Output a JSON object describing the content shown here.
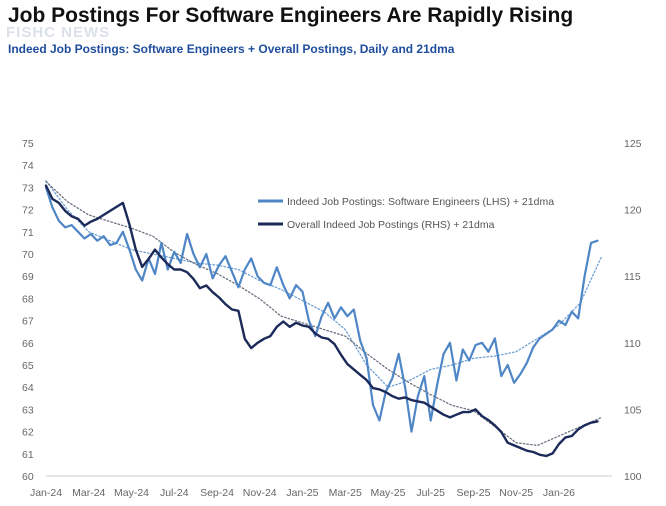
{
  "header": {
    "title": "Job Postings For Software Engineers Are Rapidly Rising",
    "subtitle": "Indeed Job Postings: Software Engineers + Overall Postings, Daily and 21dma",
    "watermark": "FISHC NEWS"
  },
  "colors": {
    "software": "#4f86c6",
    "software_ma": "#6f9fd6",
    "overall": "#1b2a59",
    "overall_ma": "#6b7280"
  },
  "chart_data": {
    "type": "line",
    "title": "Job Postings For Software Engineers Are Rapidly Rising",
    "subtitle": "Indeed Job Postings: Software Engineers + Overall Postings, Daily and 21dma",
    "x_tick_labels": [
      "Jan-24",
      "Mar-24",
      "May-24",
      "Jul-24",
      "Sep-24",
      "Nov-24",
      "Jan-25",
      "Mar-25",
      "May-25",
      "Jul-25",
      "Sep-25",
      "Nov-25",
      "Jan-26"
    ],
    "x_range": [
      0,
      26.2
    ],
    "left_axis": {
      "min": 60,
      "max": 75,
      "ticks": [
        "60",
        "61",
        "62",
        "63",
        "64",
        "65",
        "66",
        "67",
        "68",
        "69",
        "70",
        "71",
        "72",
        "73",
        "74",
        "75"
      ]
    },
    "right_axis": {
      "min": 100,
      "max": 125,
      "ticks": [
        "100",
        "105",
        "110",
        "115",
        "120",
        "125"
      ]
    },
    "legend": [
      "Indeed Job Postings: Software Engineers (LHS) + 21dma",
      "Overall Indeed Job Postings (RHS) + 21dma"
    ],
    "series": [
      {
        "name": "Indeed Job Postings: Software Engineers (LHS)",
        "axis": "left",
        "style": "solid",
        "x": [
          0,
          0.3,
          0.6,
          0.9,
          1.2,
          1.5,
          1.8,
          2.1,
          2.4,
          2.7,
          3.0,
          3.3,
          3.6,
          3.9,
          4.2,
          4.5,
          4.8,
          5.1,
          5.4,
          5.7,
          6.0,
          6.3,
          6.6,
          6.9,
          7.2,
          7.5,
          7.8,
          8.1,
          8.4,
          8.7,
          9.0,
          9.3,
          9.6,
          9.9,
          10.2,
          10.5,
          10.8,
          11.1,
          11.4,
          11.7,
          12.0,
          12.3,
          12.6,
          12.9,
          13.2,
          13.5,
          13.8,
          14.1,
          14.4,
          14.7,
          15.0,
          15.3,
          15.6,
          15.9,
          16.2,
          16.5,
          16.8,
          17.1,
          17.4,
          17.7,
          18.0,
          18.3,
          18.6,
          18.9,
          19.2,
          19.5,
          19.8,
          20.1,
          20.4,
          20.7,
          21.0,
          21.3,
          21.6,
          21.9,
          22.2,
          22.5,
          22.8,
          23.1,
          23.4,
          23.7,
          24.0,
          24.3,
          24.6,
          24.9,
          25.2,
          25.5,
          25.8
        ],
        "values": [
          73.0,
          72.1,
          71.5,
          71.2,
          71.3,
          71.0,
          70.7,
          70.9,
          70.6,
          70.8,
          70.4,
          70.5,
          71.0,
          70.2,
          69.3,
          68.8,
          69.8,
          69.1,
          70.5,
          69.3,
          70.1,
          69.6,
          70.9,
          70.0,
          69.4,
          70.0,
          68.9,
          69.5,
          69.9,
          69.2,
          68.5,
          69.3,
          69.8,
          69.0,
          68.7,
          68.6,
          69.4,
          68.6,
          68.0,
          68.6,
          68.3,
          67.0,
          66.3,
          67.2,
          67.8,
          67.1,
          67.6,
          67.2,
          67.5,
          66.1,
          65.3,
          63.2,
          62.5,
          63.8,
          64.4,
          65.5,
          64.0,
          62.0,
          63.6,
          64.5,
          62.5,
          64.1,
          65.5,
          66.0,
          64.3,
          65.7,
          65.2,
          65.9,
          66.0,
          65.6,
          66.2,
          64.5,
          65.0,
          64.2,
          64.6,
          65.1,
          65.8,
          66.2,
          66.4,
          66.6,
          67.0,
          66.8,
          67.4,
          67.1,
          69.0,
          70.5,
          70.6
        ]
      },
      {
        "name": "Software Engineers 21dma",
        "axis": "left",
        "style": "dotted",
        "x": [
          0,
          1,
          2,
          3,
          4,
          5,
          6,
          7,
          8,
          9,
          10,
          11,
          12,
          13,
          14,
          15,
          16,
          17,
          18,
          19,
          20,
          21,
          22,
          23,
          24,
          25,
          26
        ],
        "values": [
          73.3,
          72.0,
          71.0,
          70.6,
          70.2,
          70.0,
          69.8,
          69.6,
          69.5,
          69.3,
          68.8,
          68.4,
          67.9,
          67.4,
          66.6,
          65.0,
          64.0,
          64.3,
          64.8,
          65.0,
          65.3,
          65.4,
          65.6,
          66.2,
          66.8,
          67.8,
          69.9
        ]
      },
      {
        "name": "Overall Indeed Job Postings (RHS)",
        "axis": "right",
        "style": "solid",
        "x": [
          0,
          0.3,
          0.6,
          0.9,
          1.2,
          1.5,
          1.8,
          2.1,
          2.4,
          2.7,
          3.0,
          3.3,
          3.6,
          3.9,
          4.2,
          4.5,
          4.8,
          5.1,
          5.4,
          5.7,
          6.0,
          6.3,
          6.6,
          6.9,
          7.2,
          7.5,
          7.8,
          8.1,
          8.4,
          8.7,
          9.0,
          9.3,
          9.6,
          9.9,
          10.2,
          10.5,
          10.8,
          11.1,
          11.4,
          11.7,
          12.0,
          12.3,
          12.6,
          12.9,
          13.2,
          13.5,
          13.8,
          14.1,
          14.4,
          14.7,
          15.0,
          15.3,
          15.6,
          15.9,
          16.2,
          16.5,
          16.8,
          17.1,
          17.4,
          17.7,
          18.0,
          18.3,
          18.6,
          18.9,
          19.2,
          19.5,
          19.8,
          20.1,
          20.4,
          20.7,
          21.0,
          21.3,
          21.6,
          21.9,
          22.2,
          22.5,
          22.8,
          23.1,
          23.4,
          23.7,
          24.0,
          24.3,
          24.6,
          24.9,
          25.2,
          25.5,
          25.8
        ],
        "values": [
          121.8,
          120.8,
          120.5,
          119.9,
          119.5,
          119.3,
          118.8,
          119.1,
          119.3,
          119.6,
          119.9,
          120.2,
          120.5,
          118.9,
          117.0,
          115.7,
          116.3,
          117.0,
          116.4,
          115.9,
          115.5,
          115.5,
          115.3,
          114.8,
          114.1,
          114.3,
          113.8,
          113.4,
          112.9,
          112.5,
          112.4,
          110.3,
          109.6,
          110.0,
          110.3,
          110.5,
          111.2,
          111.6,
          111.2,
          111.5,
          111.3,
          111.2,
          110.7,
          110.4,
          110.3,
          109.9,
          109.1,
          108.4,
          108.0,
          107.6,
          107.2,
          106.6,
          106.5,
          106.3,
          106.0,
          105.8,
          105.9,
          105.7,
          105.6,
          105.5,
          105.2,
          104.9,
          104.6,
          104.4,
          104.6,
          104.8,
          104.8,
          105.0,
          104.5,
          104.2,
          103.8,
          103.3,
          102.5,
          102.3,
          102.1,
          101.9,
          101.8,
          101.6,
          101.5,
          101.7,
          102.4,
          102.9,
          103.0,
          103.5,
          103.8,
          104.0,
          104.1
        ]
      },
      {
        "name": "Overall Postings 21dma",
        "axis": "right",
        "style": "dotted",
        "x": [
          0,
          1,
          2,
          3,
          4,
          5,
          6,
          7,
          8,
          9,
          10,
          11,
          12,
          13,
          14,
          15,
          16,
          17,
          18,
          19,
          20,
          21,
          22,
          23,
          24,
          25,
          26
        ],
        "values": [
          122.1,
          120.6,
          119.6,
          119.1,
          118.6,
          118.0,
          116.8,
          115.9,
          115.2,
          114.3,
          113.3,
          112.0,
          111.5,
          111.0,
          110.5,
          109.2,
          108.0,
          107.0,
          106.1,
          105.3,
          104.9,
          103.7,
          102.5,
          102.3,
          103.0,
          103.7,
          104.4
        ]
      }
    ]
  }
}
